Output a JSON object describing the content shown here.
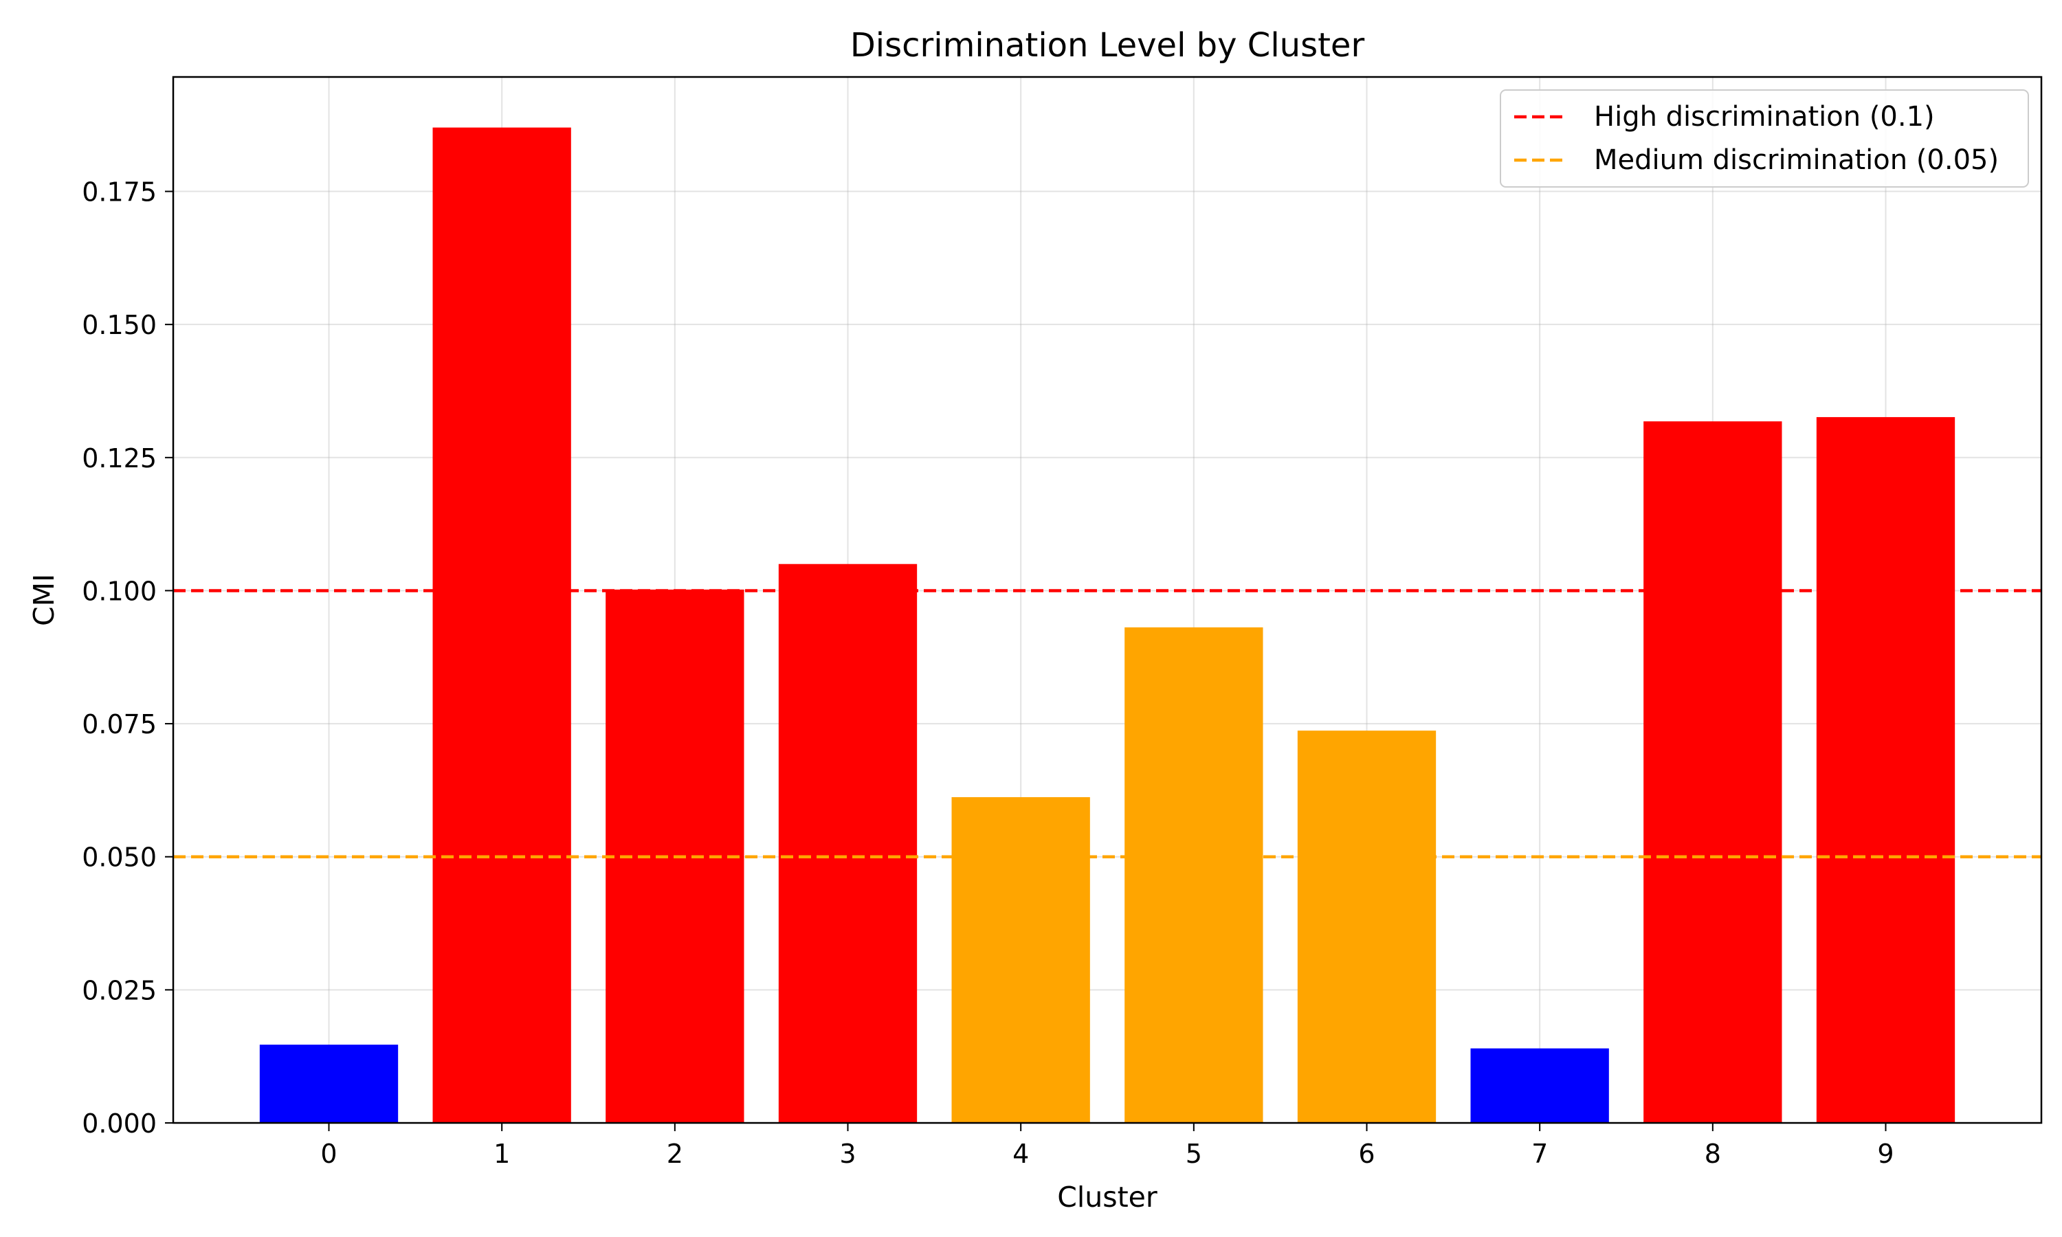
{
  "chart_data": {
    "type": "bar",
    "title": "Discrimination Level by Cluster",
    "xlabel": "Cluster",
    "ylabel": "CMI",
    "categories": [
      "0",
      "1",
      "2",
      "3",
      "4",
      "5",
      "6",
      "7",
      "8",
      "9"
    ],
    "values": [
      0.0147,
      0.187,
      0.1002,
      0.105,
      0.0612,
      0.0931,
      0.0737,
      0.014,
      0.1318,
      0.1326
    ],
    "bar_colors": [
      "#0000ff",
      "#ff0000",
      "#ff0000",
      "#ff0000",
      "#ffa500",
      "#ffa500",
      "#ffa500",
      "#0000ff",
      "#ff0000",
      "#ff0000"
    ],
    "ylim": [
      0,
      0.1965
    ],
    "xlim": [
      -0.9,
      9.9
    ],
    "yticks": [
      0.0,
      0.025,
      0.05,
      0.075,
      0.1,
      0.125,
      0.15,
      0.175
    ],
    "ytick_labels": [
      "0.000",
      "0.025",
      "0.050",
      "0.075",
      "0.100",
      "0.125",
      "0.150",
      "0.175"
    ],
    "grid": true,
    "legend_position": "top-right",
    "reference_lines": [
      {
        "name": "High discrimination (0.1)",
        "value": 0.1,
        "color": "#ff0000",
        "style": "dashed"
      },
      {
        "name": "Medium discrimination (0.05)",
        "value": 0.05,
        "color": "#ffa500",
        "style": "dashed"
      }
    ]
  }
}
